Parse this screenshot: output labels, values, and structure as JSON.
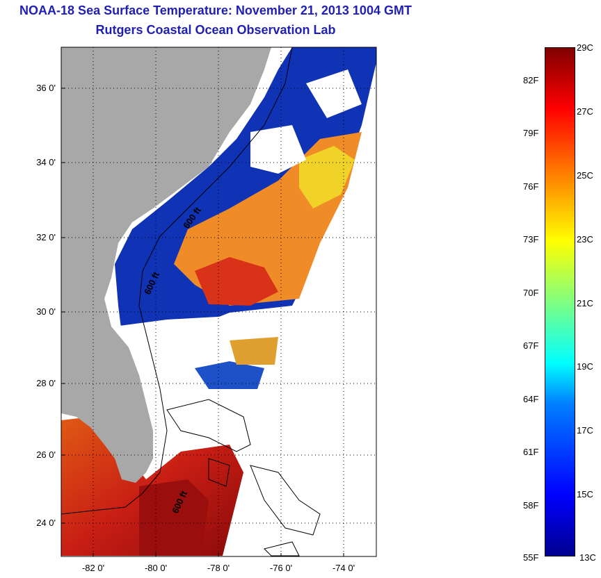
{
  "header": {
    "title": "NOAA-18 Sea Surface Temperature:  November 21, 2013 1004 GMT",
    "subtitle": "Rutgers Coastal Ocean Observation Lab"
  },
  "map": {
    "lat_ticks": [
      "36 0'",
      "34 0'",
      "32 0'",
      "30 0'",
      "28 0'",
      "26 0'",
      "24 0'"
    ],
    "lon_ticks": [
      "-82 0'",
      "-80 0'",
      "-78 0'",
      "-76 0'",
      "-74 0'"
    ],
    "contour_labels": [
      "600 ft",
      "600 ft",
      "600 ft"
    ],
    "colors": {
      "land": "#a8a8a8",
      "cloud": "#ffffff",
      "cold": "#0a1e9c",
      "warm": "#c81e14"
    }
  },
  "colorbar": {
    "colormap": "jet",
    "celsius_labels": [
      "29C",
      "27C",
      "25C",
      "23C",
      "21C",
      "19C",
      "17C",
      "15C",
      "13C"
    ],
    "fahrenheit_labels": [
      "82F",
      "79F",
      "76F",
      "73F",
      "70F",
      "67F",
      "64F",
      "61F",
      "58F",
      "55F"
    ]
  }
}
